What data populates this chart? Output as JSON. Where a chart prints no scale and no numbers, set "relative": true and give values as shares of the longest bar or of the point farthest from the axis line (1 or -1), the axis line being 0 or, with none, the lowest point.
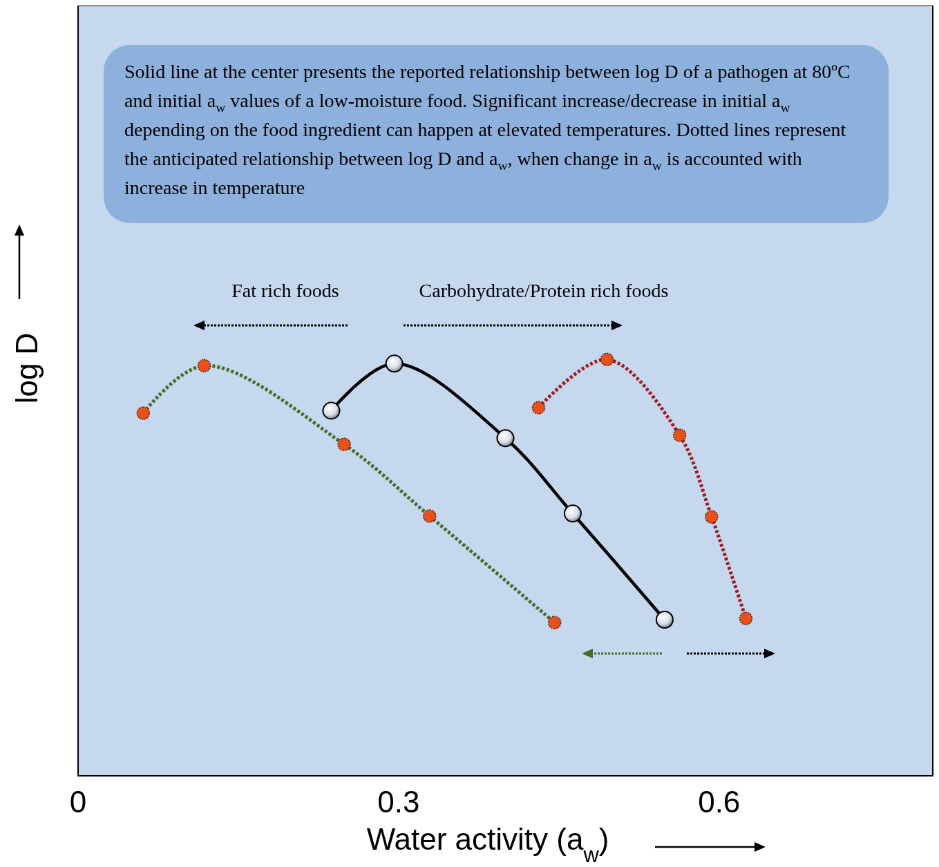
{
  "chart_data": {
    "type": "line",
    "xlabel": "Water activity (a$_{w}$)",
    "ylabel": "log D",
    "relative": true,
    "xlim": [
      0,
      0.8
    ],
    "xticks": [
      0,
      0.3,
      0.6
    ],
    "tick_labels": "x",
    "grid": false,
    "marker": "circle",
    "annotations": [
      "Solid line at the center presents the reported relationship between log D of a pathogen at 80ºC and initial a$_{w}$ values of a low-moisture food. Significant increase/decrease in initial a$_{w}$ depending on the food ingredient can happen at elevated temperatures. Dotted lines represent the anticipated relationship between log D and a$_{w}$, when change in a$_{w}$ is accounted with increase in temperature",
      "Fat rich foods",
      "Carbohydrate/Protein rich foods"
    ],
    "series": [
      {
        "color": "#000000",
        "line_style": "solid",
        "x": [
          0.237,
          0.296,
          0.4,
          0.463,
          0.549
        ],
        "values": [
          0.877,
          0.99,
          0.811,
          0.63,
          0.375
        ]
      },
      {
        "color": "#4a6a28",
        "line_style": "dotted",
        "x": [
          0.061,
          0.118,
          0.249,
          0.329,
          0.446
        ],
        "values": [
          0.871,
          0.985,
          0.796,
          0.624,
          0.368
        ]
      },
      {
        "color": "#a01c20",
        "line_style": "dotted",
        "x": [
          0.431,
          0.495,
          0.563,
          0.593,
          0.625
        ],
        "values": [
          0.884,
          1.0,
          0.818,
          0.622,
          0.378
        ]
      }
    ]
  }
}
